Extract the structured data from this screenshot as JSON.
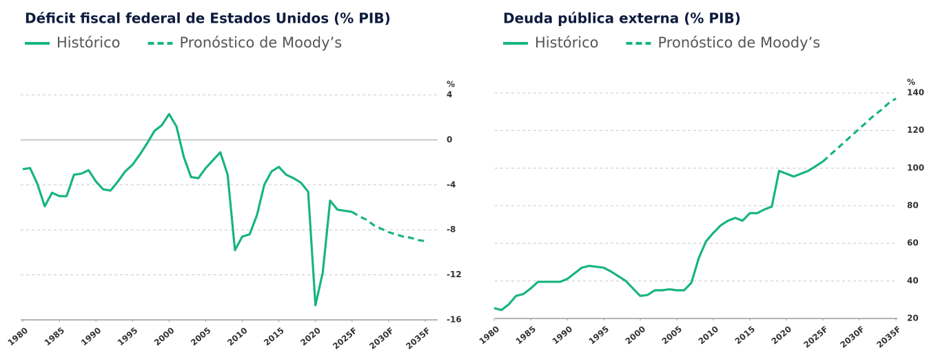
{
  "chart_data": [
    {
      "type": "line",
      "title": "Déficit fiscal federal de Estados Unidos (% PIB)",
      "y_unit": "%",
      "x": [
        1980,
        1981,
        1982,
        1983,
        1984,
        1985,
        1986,
        1987,
        1988,
        1989,
        1990,
        1991,
        1992,
        1993,
        1994,
        1995,
        1996,
        1997,
        1998,
        1999,
        2000,
        2001,
        2002,
        2003,
        2004,
        2005,
        2006,
        2007,
        2008,
        2009,
        2010,
        2011,
        2012,
        2013,
        2014,
        2015,
        2016,
        2017,
        2018,
        2019,
        2020,
        2021,
        2022,
        2023,
        2024,
        2025,
        2026,
        2027,
        2028,
        2029,
        2030,
        2031,
        2032,
        2033,
        2034,
        2035
      ],
      "series": [
        {
          "name": "Histórico",
          "color": "#17b481",
          "dashed": false,
          "values": [
            -2.6,
            -2.5,
            -3.9,
            -5.9,
            -4.7,
            -5.0,
            -5.0,
            -3.1,
            -3.0,
            -2.7,
            -3.7,
            -4.4,
            -4.5,
            -3.7,
            -2.8,
            -2.2,
            -1.3,
            -0.3,
            0.8,
            1.3,
            2.3,
            1.2,
            -1.5,
            -3.3,
            -3.4,
            -2.5,
            -1.8,
            -1.1,
            -3.1,
            -9.8,
            -8.6,
            -8.4,
            -6.7,
            -4.0,
            -2.8,
            -2.4,
            -3.1,
            -3.4,
            -3.8,
            -4.6,
            -14.7,
            -11.8,
            -5.4,
            -6.2,
            -6.3,
            -6.4,
            null,
            null,
            null,
            null,
            null,
            null,
            null,
            null,
            null,
            null
          ]
        },
        {
          "name": "Pronóstico de Moody’s",
          "color": "#17b481",
          "dashed": true,
          "values": [
            null,
            null,
            null,
            null,
            null,
            null,
            null,
            null,
            null,
            null,
            null,
            null,
            null,
            null,
            null,
            null,
            null,
            null,
            null,
            null,
            null,
            null,
            null,
            null,
            null,
            null,
            null,
            null,
            null,
            null,
            null,
            null,
            null,
            null,
            null,
            null,
            null,
            null,
            null,
            null,
            null,
            null,
            null,
            null,
            null,
            -6.4,
            -6.8,
            -7.1,
            -7.6,
            -7.9,
            -8.2,
            -8.4,
            -8.6,
            -8.7,
            -8.9,
            -9.0
          ]
        }
      ],
      "xlim": [
        1980,
        2035
      ],
      "xticks": [
        1980,
        1985,
        1990,
        1995,
        2000,
        2005,
        2010,
        2015,
        2020,
        {
          "value": 2025,
          "label": "2025F"
        },
        {
          "value": 2030,
          "label": "2030F"
        },
        {
          "value": 2035,
          "label": "2035F"
        }
      ],
      "ylim": [
        -16,
        4
      ],
      "yticks": [
        4,
        0,
        -4,
        -8,
        -12,
        -16
      ],
      "grid": true,
      "zero_line": true
    },
    {
      "type": "line",
      "title": "Deuda pública externa (% PIB)",
      "y_unit": "%",
      "x": [
        1980,
        1981,
        1982,
        1983,
        1984,
        1985,
        1986,
        1987,
        1988,
        1989,
        1990,
        1991,
        1992,
        1993,
        1994,
        1995,
        1996,
        1997,
        1998,
        1999,
        2000,
        2001,
        2002,
        2003,
        2004,
        2005,
        2006,
        2007,
        2008,
        2009,
        2010,
        2011,
        2012,
        2013,
        2014,
        2015,
        2016,
        2017,
        2018,
        2019,
        2020,
        2021,
        2022,
        2023,
        2024,
        2025,
        2026,
        2027,
        2028,
        2029,
        2030,
        2031,
        2032,
        2033,
        2034,
        2035
      ],
      "series": [
        {
          "name": "Histórico",
          "color": "#17b481",
          "dashed": false,
          "values": [
            25.5,
            24.5,
            27.5,
            32,
            33,
            36,
            39.5,
            39.5,
            39.5,
            39.5,
            41,
            44,
            47,
            48,
            47.5,
            47,
            45,
            42.5,
            40,
            36,
            32,
            32.5,
            35,
            35,
            35.5,
            35,
            35,
            39,
            52,
            61,
            65.5,
            69.5,
            72,
            73.5,
            72,
            76,
            76,
            78,
            79.5,
            98.5,
            97,
            95.5,
            97,
            98.5,
            101,
            103.5,
            null,
            null,
            null,
            null,
            null,
            null,
            null,
            null,
            null,
            null
          ]
        },
        {
          "name": "Pronóstico de Moody’s",
          "color": "#17b481",
          "dashed": true,
          "values": [
            null,
            null,
            null,
            null,
            null,
            null,
            null,
            null,
            null,
            null,
            null,
            null,
            null,
            null,
            null,
            null,
            null,
            null,
            null,
            null,
            null,
            null,
            null,
            null,
            null,
            null,
            null,
            null,
            null,
            null,
            null,
            null,
            null,
            null,
            null,
            null,
            null,
            null,
            null,
            null,
            null,
            null,
            null,
            null,
            null,
            103.5,
            107,
            110.5,
            114,
            117.5,
            121,
            124.5,
            128,
            131,
            134.5,
            137
          ]
        }
      ],
      "xlim": [
        1980,
        2035
      ],
      "xticks": [
        1980,
        1985,
        1990,
        1995,
        2000,
        2005,
        2010,
        2015,
        2020,
        {
          "value": 2025,
          "label": "2025F"
        },
        {
          "value": 2030,
          "label": "2030F"
        },
        {
          "value": 2035,
          "label": "2035F"
        }
      ],
      "ylim": [
        20,
        140
      ],
      "yticks": [
        140,
        120,
        100,
        80,
        60,
        40,
        20
      ],
      "grid": true,
      "zero_line": false
    }
  ]
}
